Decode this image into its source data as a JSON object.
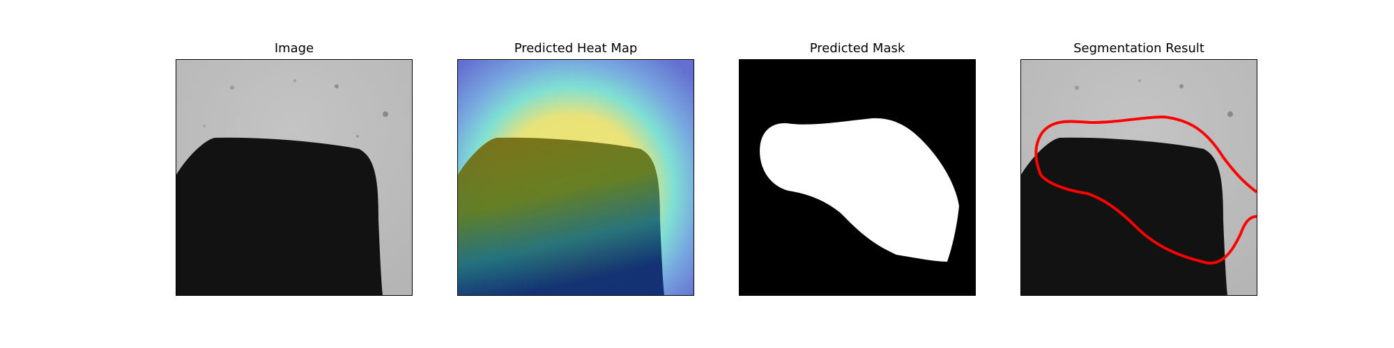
{
  "figure": {
    "panels": [
      {
        "title": "Image"
      },
      {
        "title": "Predicted Heat Map"
      },
      {
        "title": "Predicted Mask"
      },
      {
        "title": "Segmentation Result"
      }
    ]
  },
  "colors": {
    "background": "#ffffff",
    "image_gray": "#bdbdbd",
    "object_dark": "#111111",
    "mask_black": "#000000",
    "mask_white": "#ffffff",
    "contour_red": "#ff0000",
    "heat_outer": "#6b78d6",
    "heat_mid": "#6ee0d8",
    "heat_edge": "#f0e06a",
    "heat_object": "#7a7a10"
  }
}
